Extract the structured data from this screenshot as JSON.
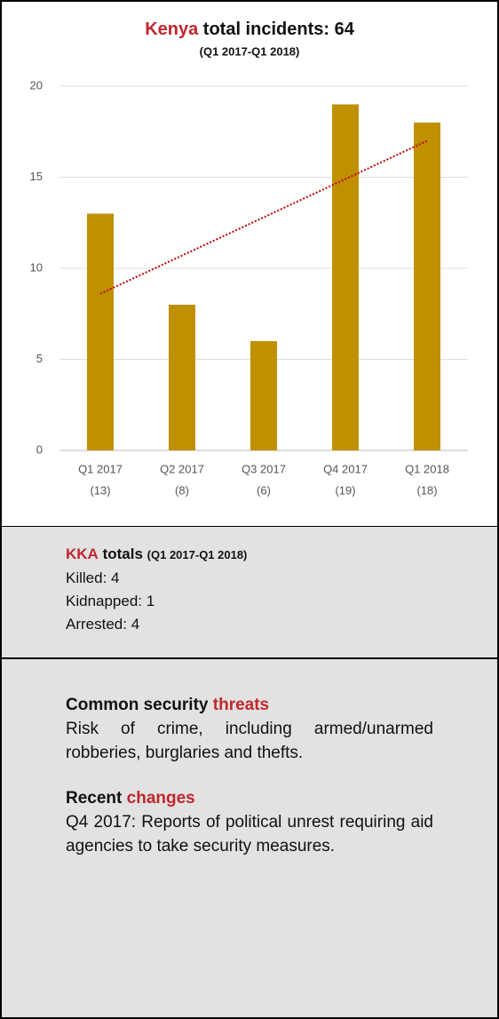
{
  "chart_data": {
    "type": "bar",
    "title_parts": [
      "Kenya",
      "total incidents: 64"
    ],
    "subtitle": "(Q1 2017-Q1 2018)",
    "categories": [
      "Q1 2017",
      "Q2 2017",
      "Q3 2017",
      "Q4 2017",
      "Q1 2018"
    ],
    "values": [
      13,
      8,
      6,
      19,
      18
    ],
    "value_labels": [
      "(13)",
      "(8)",
      "(6)",
      "(19)",
      "(18)"
    ],
    "color": "#bf9000",
    "trend": {
      "color": "#c00000",
      "values": [
        8.6,
        10.7,
        12.8,
        14.9,
        17.0
      ]
    },
    "ylim": [
      0,
      20
    ],
    "yticks": [
      0,
      5,
      10,
      15,
      20
    ],
    "grid": true
  },
  "kka": {
    "heading": [
      "KKA",
      "totals",
      "(Q1 2017-Q1 2018)"
    ],
    "lines": [
      "Killed: 4",
      "Kidnapped: 1",
      "Arrested: 4"
    ]
  },
  "threats": {
    "heading": [
      "Common security",
      "threats"
    ],
    "body": "Risk of crime, including armed/unarmed robberies, burglaries and thefts."
  },
  "changes": {
    "heading": [
      "Recent",
      "changes"
    ],
    "body": "Q4 2017: Reports of political unrest requiring aid agencies to take security measures."
  }
}
